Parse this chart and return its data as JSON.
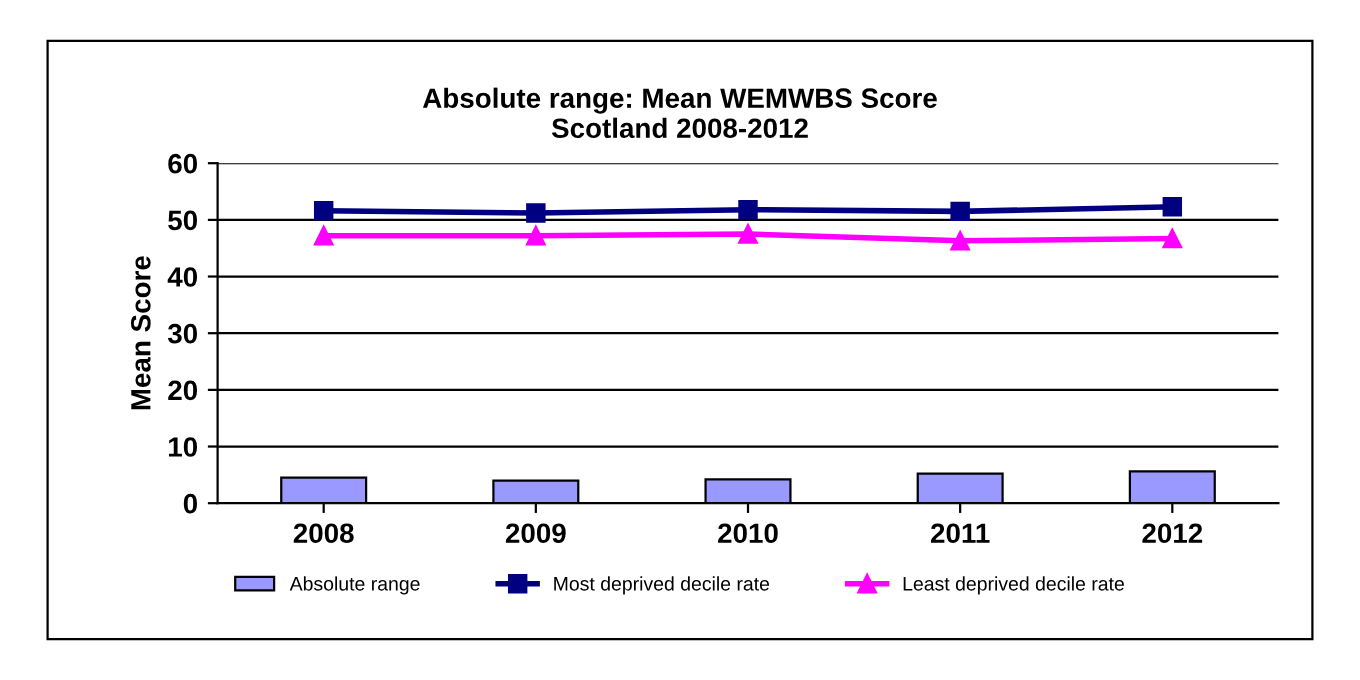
{
  "chart_data": {
    "type": "bar",
    "title": "Absolute range: Mean WEMWBS Score\nScotland 2008-2012",
    "ylabel": "Mean Score",
    "categories": [
      "2008",
      "2009",
      "2010",
      "2011",
      "2012"
    ],
    "series": [
      {
        "name": "Absolute range",
        "color": "#9999ff",
        "values": [
          4.5,
          4.0,
          4.2,
          5.2,
          5.6
        ]
      },
      {
        "name": "Most deprived decile rate",
        "type": "line",
        "marker": "square",
        "color": "#000080",
        "values": [
          51.6,
          51.2,
          51.8,
          51.5,
          52.3
        ]
      },
      {
        "name": "Least deprived decile rate",
        "type": "line",
        "marker": "triangle",
        "color": "#ff00ff",
        "values": [
          47.2,
          47.2,
          47.5,
          46.3,
          46.7
        ]
      }
    ],
    "ylim": [
      0,
      60
    ],
    "yticks": [
      0,
      10,
      20,
      30,
      40,
      50,
      60
    ],
    "grid": "y",
    "legend": "bottom"
  }
}
